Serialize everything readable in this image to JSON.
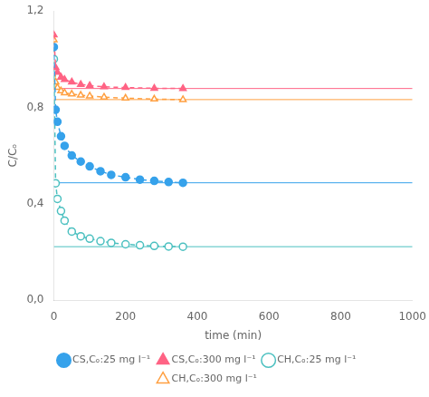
{
  "chart_data": {
    "type": "line",
    "xlabel": "time (min)",
    "ylabel": "C/Cₒ",
    "xlim": [
      0,
      1000
    ],
    "xticks": [
      0,
      200,
      400,
      600,
      800,
      1000
    ],
    "ylim": [
      0.0,
      1.2
    ],
    "yticks": [
      {
        "value": 0.0,
        "label": "0,0"
      },
      {
        "value": 0.4,
        "label": "0,4"
      },
      {
        "value": 0.8,
        "label": "0,8"
      },
      {
        "value": 1.2,
        "label": "1,2"
      }
    ],
    "grid": false,
    "legend": "bottom",
    "series": [
      {
        "name": "CS,Cₒ:25 mg l⁻¹",
        "marker": "circle",
        "line_style": "dashed",
        "asymptote": 0.487,
        "x": [
          0,
          5,
          10,
          20,
          30,
          50,
          75,
          100,
          130,
          160,
          200,
          240,
          280,
          320,
          360
        ],
        "values": [
          1.05,
          0.79,
          0.74,
          0.68,
          0.64,
          0.6,
          0.575,
          0.555,
          0.535,
          0.52,
          0.51,
          0.5,
          0.495,
          0.49,
          0.487
        ]
      },
      {
        "name": "CS,Cₒ:300 mg l⁻¹",
        "marker": "triangle",
        "line_style": "dashed",
        "asymptote": 0.878,
        "x": [
          0,
          5,
          10,
          20,
          30,
          50,
          75,
          100,
          140,
          200,
          280,
          360
        ],
        "values": [
          1.1,
          0.965,
          0.945,
          0.925,
          0.915,
          0.905,
          0.895,
          0.89,
          0.885,
          0.882,
          0.879,
          0.878
        ]
      },
      {
        "name": "CH,Cₒ:25 mg l⁻¹",
        "marker": "open-circle",
        "line_style": "dashed",
        "asymptote": 0.222,
        "x": [
          0,
          5,
          10,
          20,
          30,
          50,
          75,
          100,
          130,
          160,
          200,
          240,
          280,
          320,
          360
        ],
        "values": [
          1.0,
          0.485,
          0.42,
          0.37,
          0.33,
          0.285,
          0.265,
          0.255,
          0.245,
          0.238,
          0.232,
          0.228,
          0.225,
          0.223,
          0.222
        ]
      },
      {
        "name": "CH,Cₒ:300 mg l⁻¹",
        "marker": "open-triangle",
        "line_style": "dashed",
        "asymptote": 0.832,
        "x": [
          0,
          5,
          10,
          20,
          30,
          50,
          75,
          100,
          140,
          200,
          280,
          360
        ],
        "values": [
          1.08,
          0.905,
          0.882,
          0.868,
          0.86,
          0.855,
          0.85,
          0.847,
          0.842,
          0.838,
          0.834,
          0.832
        ]
      }
    ]
  }
}
